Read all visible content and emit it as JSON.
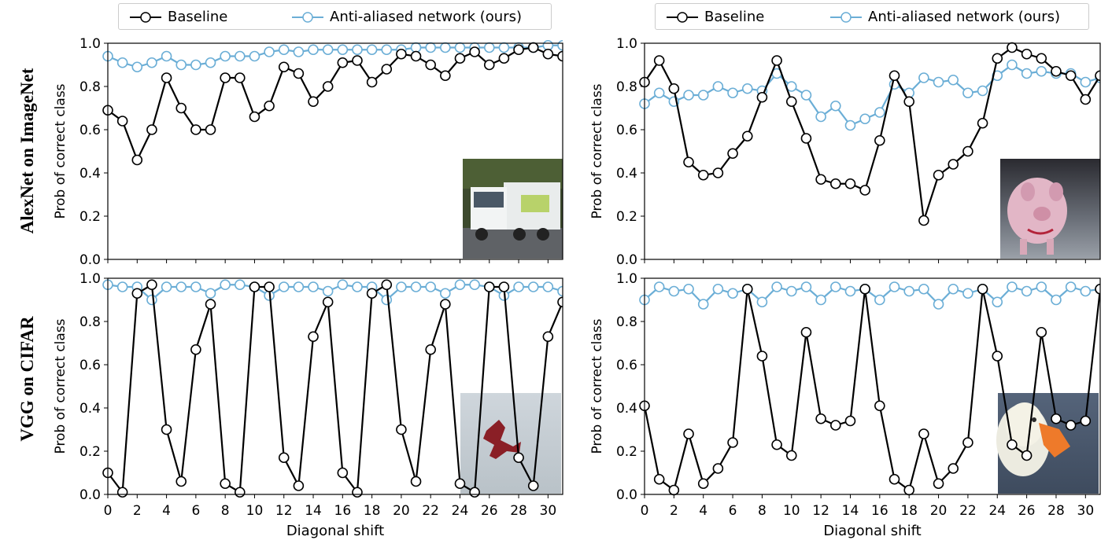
{
  "row_labels": [
    "AlexNet on ImageNet",
    "VGG on CIFAR"
  ],
  "legend": {
    "baseline": "Baseline",
    "antialiased": "Anti-aliased network (ours)"
  },
  "colors": {
    "baseline": "#000000",
    "antialiased": "#6baed6",
    "axes": "#000000"
  },
  "chart_data": [
    {
      "type": "line",
      "panel": "top-left",
      "xlabel": "",
      "ylabel": "Prob of correct class",
      "xlim": [
        0,
        31
      ],
      "ylim": [
        0,
        1
      ],
      "yticks": [
        "0.0",
        "0.2",
        "0.4",
        "0.6",
        "0.8",
        "1.0"
      ],
      "x": [
        0,
        1,
        2,
        3,
        4,
        5,
        6,
        7,
        8,
        9,
        10,
        11,
        12,
        13,
        14,
        15,
        16,
        17,
        18,
        19,
        20,
        21,
        22,
        23,
        24,
        25,
        26,
        27,
        28,
        29,
        30,
        31
      ],
      "series": [
        {
          "name": "Baseline",
          "values": [
            0.69,
            0.64,
            0.46,
            0.6,
            0.84,
            0.7,
            0.6,
            0.6,
            0.84,
            0.84,
            0.66,
            0.71,
            0.89,
            0.86,
            0.73,
            0.8,
            0.91,
            0.92,
            0.82,
            0.88,
            0.95,
            0.94,
            0.9,
            0.85,
            0.93,
            0.96,
            0.9,
            0.93,
            0.97,
            0.98,
            0.95,
            0.94
          ]
        },
        {
          "name": "Anti-aliased network (ours)",
          "values": [
            0.94,
            0.91,
            0.89,
            0.91,
            0.94,
            0.9,
            0.9,
            0.91,
            0.94,
            0.94,
            0.94,
            0.96,
            0.97,
            0.96,
            0.97,
            0.97,
            0.97,
            0.97,
            0.97,
            0.97,
            0.97,
            0.98,
            0.98,
            0.98,
            0.98,
            0.98,
            0.98,
            0.98,
            0.98,
            0.98,
            0.99,
            0.99
          ]
        }
      ],
      "legend_position": "top",
      "inset_image": "garbage-truck"
    },
    {
      "type": "line",
      "panel": "top-right",
      "xlabel": "",
      "ylabel": "Prob of correct class",
      "xlim": [
        0,
        31
      ],
      "ylim": [
        0,
        1
      ],
      "yticks": [
        "0.0",
        "0.2",
        "0.4",
        "0.6",
        "0.8",
        "1.0"
      ],
      "x": [
        0,
        1,
        2,
        3,
        4,
        5,
        6,
        7,
        8,
        9,
        10,
        11,
        12,
        13,
        14,
        15,
        16,
        17,
        18,
        19,
        20,
        21,
        22,
        23,
        24,
        25,
        26,
        27,
        28,
        29,
        30,
        31
      ],
      "series": [
        {
          "name": "Baseline",
          "values": [
            0.82,
            0.92,
            0.79,
            0.45,
            0.39,
            0.4,
            0.49,
            0.57,
            0.75,
            0.92,
            0.73,
            0.56,
            0.37,
            0.35,
            0.35,
            0.32,
            0.55,
            0.85,
            0.73,
            0.18,
            0.39,
            0.44,
            0.5,
            0.63,
            0.93,
            0.98,
            0.95,
            0.93,
            0.87,
            0.85,
            0.74,
            0.85
          ]
        },
        {
          "name": "Anti-aliased network (ours)",
          "values": [
            0.72,
            0.77,
            0.73,
            0.76,
            0.76,
            0.8,
            0.77,
            0.79,
            0.78,
            0.86,
            0.8,
            0.76,
            0.66,
            0.71,
            0.62,
            0.65,
            0.68,
            0.81,
            0.77,
            0.84,
            0.82,
            0.83,
            0.77,
            0.78,
            0.85,
            0.9,
            0.86,
            0.87,
            0.86,
            0.86,
            0.82,
            0.84
          ]
        }
      ],
      "legend_position": "top",
      "inset_image": "pig-toy"
    },
    {
      "type": "line",
      "panel": "bottom-left",
      "xlabel": "Diagonal shift",
      "ylabel": "Prob of correct class",
      "xlim": [
        0,
        31
      ],
      "ylim": [
        0,
        1
      ],
      "yticks": [
        "0.0",
        "0.2",
        "0.4",
        "0.6",
        "0.8",
        "1.0"
      ],
      "xticks": [
        "0",
        "2",
        "4",
        "6",
        "8",
        "10",
        "12",
        "14",
        "16",
        "18",
        "20",
        "22",
        "24",
        "26",
        "28",
        "30"
      ],
      "x": [
        0,
        1,
        2,
        3,
        4,
        5,
        6,
        7,
        8,
        9,
        10,
        11,
        12,
        13,
        14,
        15,
        16,
        17,
        18,
        19,
        20,
        21,
        22,
        23,
        24,
        25,
        26,
        27,
        28,
        29,
        30,
        31
      ],
      "series": [
        {
          "name": "Baseline",
          "values": [
            0.1,
            0.01,
            0.93,
            0.97,
            0.3,
            0.06,
            0.67,
            0.88,
            0.05,
            0.01,
            0.96,
            0.96,
            0.17,
            0.04,
            0.73,
            0.89,
            0.1,
            0.01,
            0.93,
            0.97,
            0.3,
            0.06,
            0.67,
            0.88,
            0.05,
            0.01,
            0.96,
            0.96,
            0.17,
            0.04,
            0.73,
            0.89
          ]
        },
        {
          "name": "Anti-aliased network (ours)",
          "values": [
            0.97,
            0.96,
            0.96,
            0.9,
            0.96,
            0.96,
            0.96,
            0.93,
            0.97,
            0.97,
            0.96,
            0.92,
            0.96,
            0.96,
            0.96,
            0.94,
            0.97,
            0.96,
            0.96,
            0.9,
            0.96,
            0.96,
            0.96,
            0.93,
            0.97,
            0.97,
            0.96,
            0.92,
            0.96,
            0.96,
            0.96,
            0.94
          ]
        }
      ],
      "inset_image": "airplane"
    },
    {
      "type": "line",
      "panel": "bottom-right",
      "xlabel": "Diagonal shift",
      "ylabel": "Prob of correct class",
      "xlim": [
        0,
        31
      ],
      "ylim": [
        0,
        1
      ],
      "yticks": [
        "0.0",
        "0.2",
        "0.4",
        "0.6",
        "0.8",
        "1.0"
      ],
      "xticks": [
        "0",
        "2",
        "4",
        "6",
        "8",
        "10",
        "12",
        "14",
        "16",
        "18",
        "20",
        "22",
        "24",
        "26",
        "28",
        "30"
      ],
      "x": [
        0,
        1,
        2,
        3,
        4,
        5,
        6,
        7,
        8,
        9,
        10,
        11,
        12,
        13,
        14,
        15,
        16,
        17,
        18,
        19,
        20,
        21,
        22,
        23,
        24,
        25,
        26,
        27,
        28,
        29,
        30,
        31
      ],
      "series": [
        {
          "name": "Baseline",
          "values": [
            0.41,
            0.07,
            0.02,
            0.28,
            0.05,
            0.12,
            0.24,
            0.95,
            0.64,
            0.23,
            0.18,
            0.75,
            0.35,
            0.32,
            0.34,
            0.95,
            0.41,
            0.07,
            0.02,
            0.28,
            0.05,
            0.12,
            0.24,
            0.95,
            0.64,
            0.23,
            0.18,
            0.75,
            0.35,
            0.32,
            0.34,
            0.95
          ]
        },
        {
          "name": "Anti-aliased network (ours)",
          "values": [
            0.9,
            0.96,
            0.94,
            0.95,
            0.88,
            0.95,
            0.93,
            0.95,
            0.89,
            0.96,
            0.94,
            0.96,
            0.9,
            0.96,
            0.94,
            0.95,
            0.9,
            0.96,
            0.94,
            0.95,
            0.88,
            0.95,
            0.93,
            0.95,
            0.89,
            0.96,
            0.94,
            0.96,
            0.9,
            0.96,
            0.94,
            0.95
          ]
        }
      ],
      "inset_image": "duck"
    }
  ]
}
